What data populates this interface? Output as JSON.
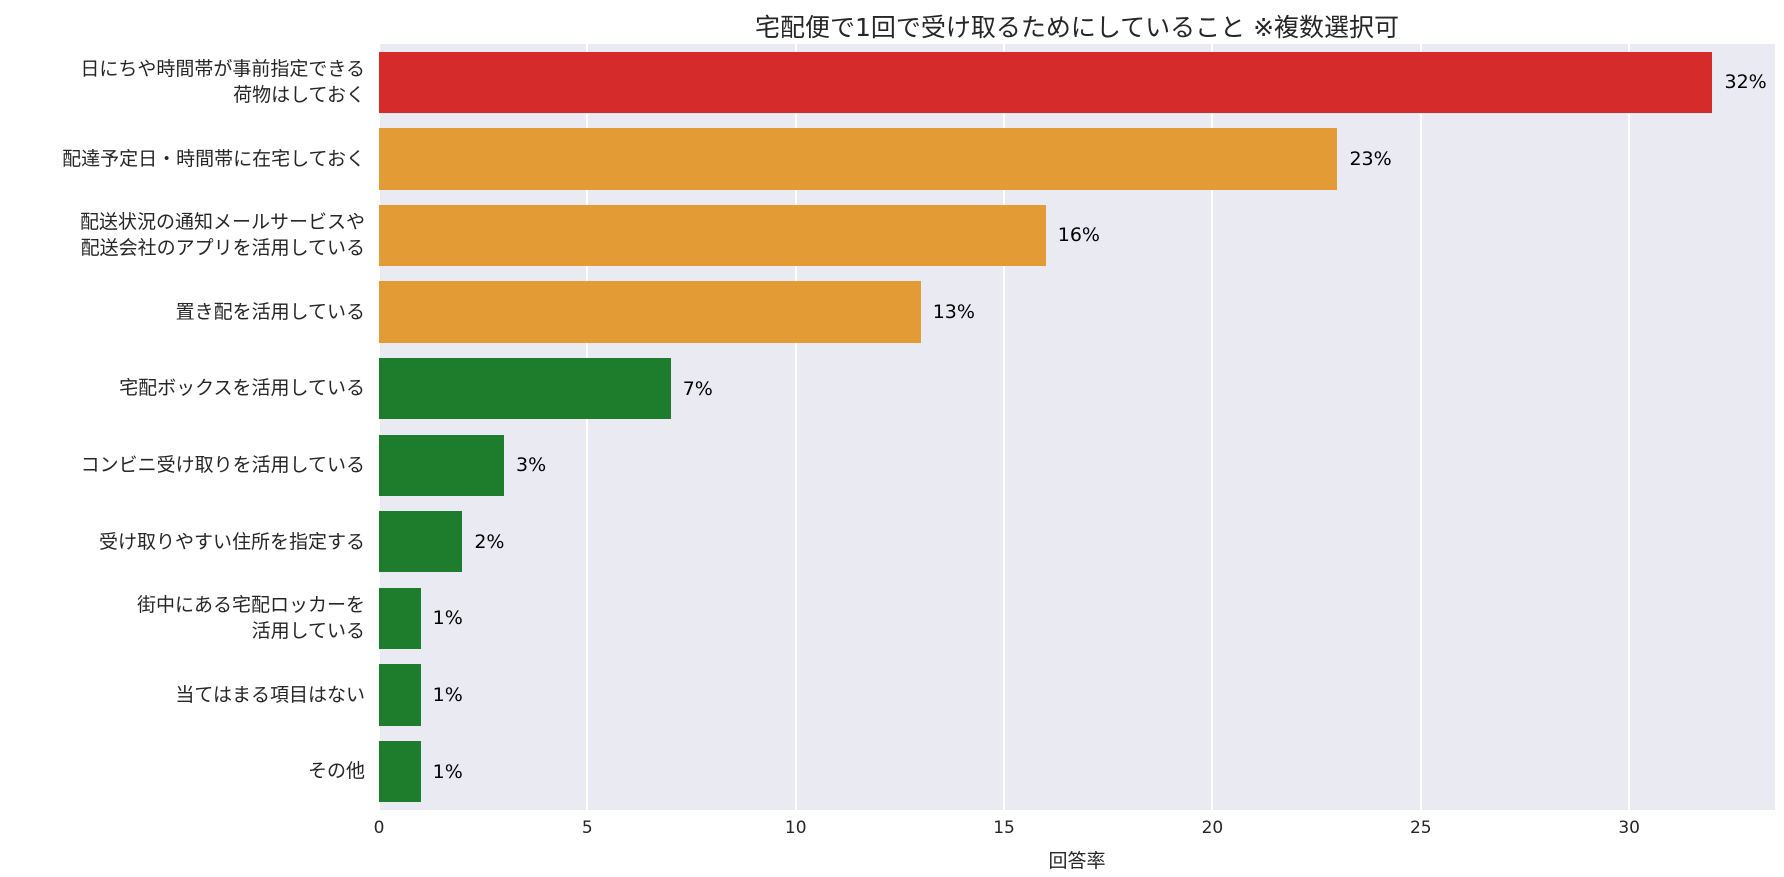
{
  "chart_data": {
    "type": "bar",
    "orientation": "horizontal",
    "title": "宅配便で1回で受け取るためにしていること ※複数選択可",
    "xlabel": "回答率",
    "ylabel": "",
    "xlim": [
      0,
      33.5
    ],
    "xticks": [
      0,
      5,
      10,
      15,
      20,
      25,
      30
    ],
    "grid": true,
    "plot_background": "#eaeaf2",
    "gridline_color": "#ffffff",
    "categories": [
      "日にちや時間帯が事前指定できる\n荷物はしておく",
      "配達予定日・時間帯に在宅しておく",
      "配送状況の通知メールサービスや\n配送会社のアプリを活用している",
      "置き配を活用している",
      "宅配ボックスを活用している",
      "コンビニ受け取りを活用している",
      "受け取りやすい住所を指定する",
      "街中にある宅配ロッカーを\n活用している",
      "当てはまる項目はない",
      "その他"
    ],
    "values": [
      32,
      23,
      16,
      13,
      7,
      3,
      2,
      1,
      1,
      1
    ],
    "value_labels": [
      "32%",
      "23%",
      "16%",
      "13%",
      "7%",
      "3%",
      "2%",
      "1%",
      "1%",
      "1%"
    ],
    "bar_colors": [
      "#d62b2b",
      "#e39b35",
      "#e39b35",
      "#e39b35",
      "#1d7d2c",
      "#1d7d2c",
      "#1d7d2c",
      "#1d7d2c",
      "#1d7d2c",
      "#1d7d2c"
    ]
  }
}
